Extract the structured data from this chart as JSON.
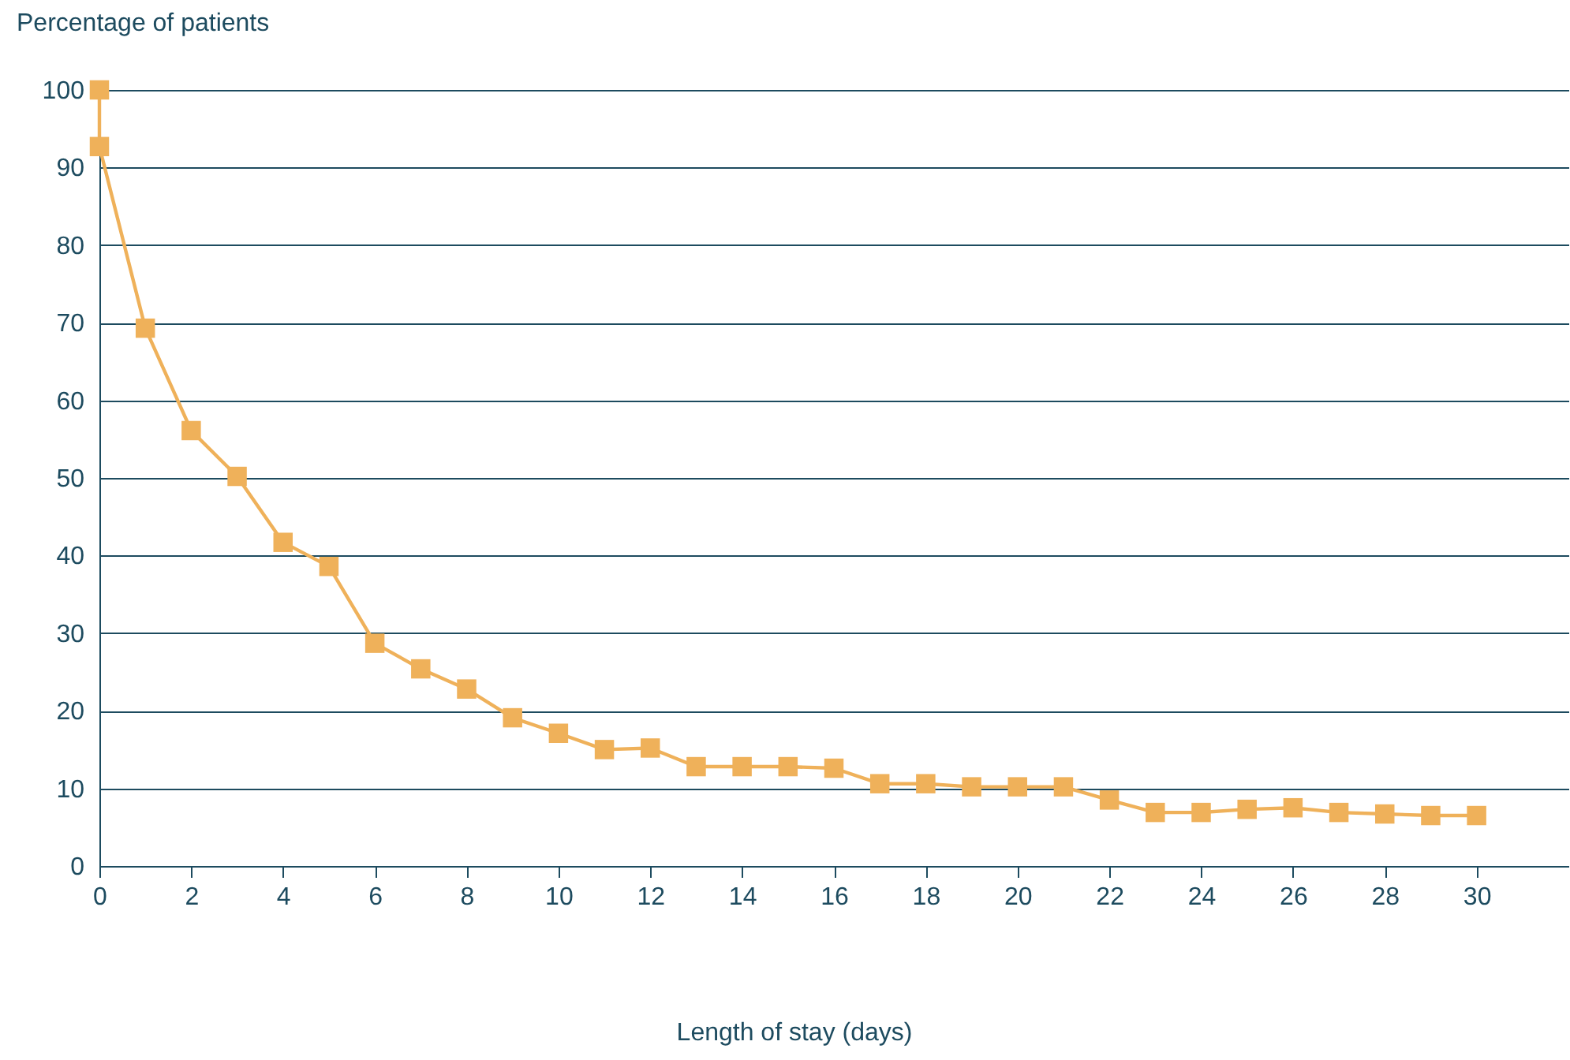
{
  "chart_data": {
    "type": "line",
    "xlabel": "Length of stay (days)",
    "ylabel": "Percentage of patients",
    "x": [
      0,
      0,
      1,
      2,
      3,
      4,
      5,
      6,
      7,
      8,
      9,
      10,
      11,
      12,
      13,
      14,
      15,
      16,
      17,
      18,
      19,
      20,
      21,
      22,
      23,
      24,
      25,
      26,
      27,
      28,
      29,
      30
    ],
    "series": [
      {
        "color": "#efb15a",
        "values": [
          100,
          92.7,
          69.3,
          56.1,
          50.2,
          41.7,
          38.6,
          28.7,
          25.4,
          22.8,
          19.1,
          17.1,
          15.0,
          15.2,
          12.8,
          12.8,
          12.8,
          12.6,
          10.6,
          10.6,
          10.2,
          10.2,
          10.2,
          8.5,
          6.9,
          6.9,
          7.3,
          7.5,
          6.9,
          6.7,
          6.5,
          6.5
        ]
      }
    ],
    "xlim": [
      0,
      32
    ],
    "xticks": [
      0,
      2,
      4,
      6,
      8,
      10,
      12,
      14,
      16,
      18,
      20,
      22,
      24,
      26,
      28,
      30
    ],
    "ylim": [
      0,
      100
    ],
    "yticks": [
      0,
      10,
      20,
      30,
      40,
      50,
      60,
      70,
      80,
      90,
      100
    ],
    "grid": "y",
    "marker": "square",
    "line_style": "solid"
  }
}
